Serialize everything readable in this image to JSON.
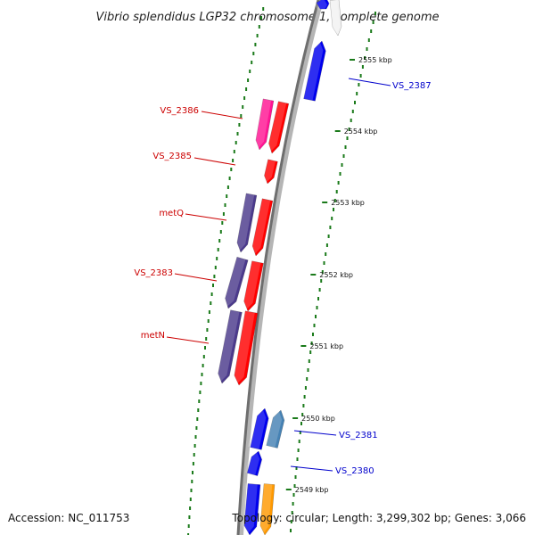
{
  "title": "Vibrio splendidus LGP32 chromosome 1, complete genome",
  "footer": {
    "accession": "Accession: NC_011753",
    "topology": "Topology: circular; Length: 3,299,302 bp; Genes: 3,066"
  },
  "colors": {
    "backbone": "#7a7a7a",
    "tick_dots": "#1a7a1a",
    "forward_label": "#cc0000",
    "reverse_label": "#0000cc",
    "red_gene": "#ff0000",
    "pink_gene": "#ff1493",
    "purple_gene": "#4b3a8c",
    "blue_gene": "#0000ee",
    "steelblue_gene": "#4682b4",
    "orange_gene": "#ff9900",
    "white_gene": "#f2f2f2"
  },
  "scale_ticks": [
    "2555 kbp",
    "2554 kbp",
    "2553 kbp",
    "2552 kbp",
    "2551 kbp",
    "2550 kbp",
    "2549 kbp"
  ],
  "gene_labels": [
    {
      "name": "VS_2387",
      "strand": "reverse"
    },
    {
      "name": "VS_2386",
      "strand": "forward"
    },
    {
      "name": "VS_2385",
      "strand": "forward"
    },
    {
      "name": "metQ",
      "strand": "forward"
    },
    {
      "name": "VS_2383",
      "strand": "forward"
    },
    {
      "name": "metN",
      "strand": "forward"
    },
    {
      "name": "VS_2381",
      "strand": "reverse"
    },
    {
      "name": "VS_2380",
      "strand": "reverse"
    }
  ]
}
